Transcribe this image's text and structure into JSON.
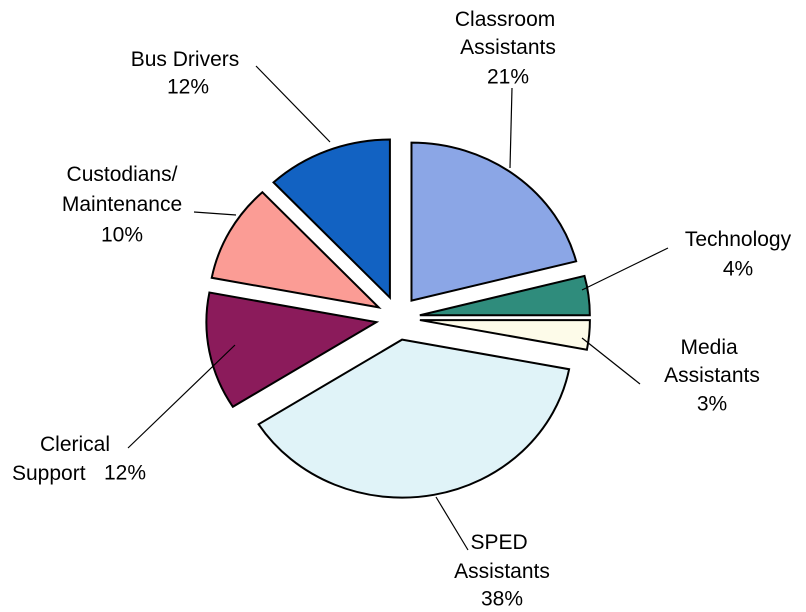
{
  "chart_data": {
    "type": "pie",
    "categories": [
      "Classroom Assistants",
      "Technology",
      "Media Assistants",
      "SPED Assistants",
      "Clerical Support",
      "Custodians/Maintenance",
      "Bus Drivers"
    ],
    "values": [
      21,
      4,
      3,
      38,
      12,
      10,
      12
    ],
    "value_labels": [
      "21%",
      "4%",
      "3%",
      "38%",
      "12%",
      "10%",
      "12%"
    ],
    "colors": [
      "#8ba6e6",
      "#2f8c7c",
      "#fdfbe9",
      "#e0f3f8",
      "#8b1b5b",
      "#fb9c95",
      "#1262c2"
    ],
    "exploded": true
  }
}
